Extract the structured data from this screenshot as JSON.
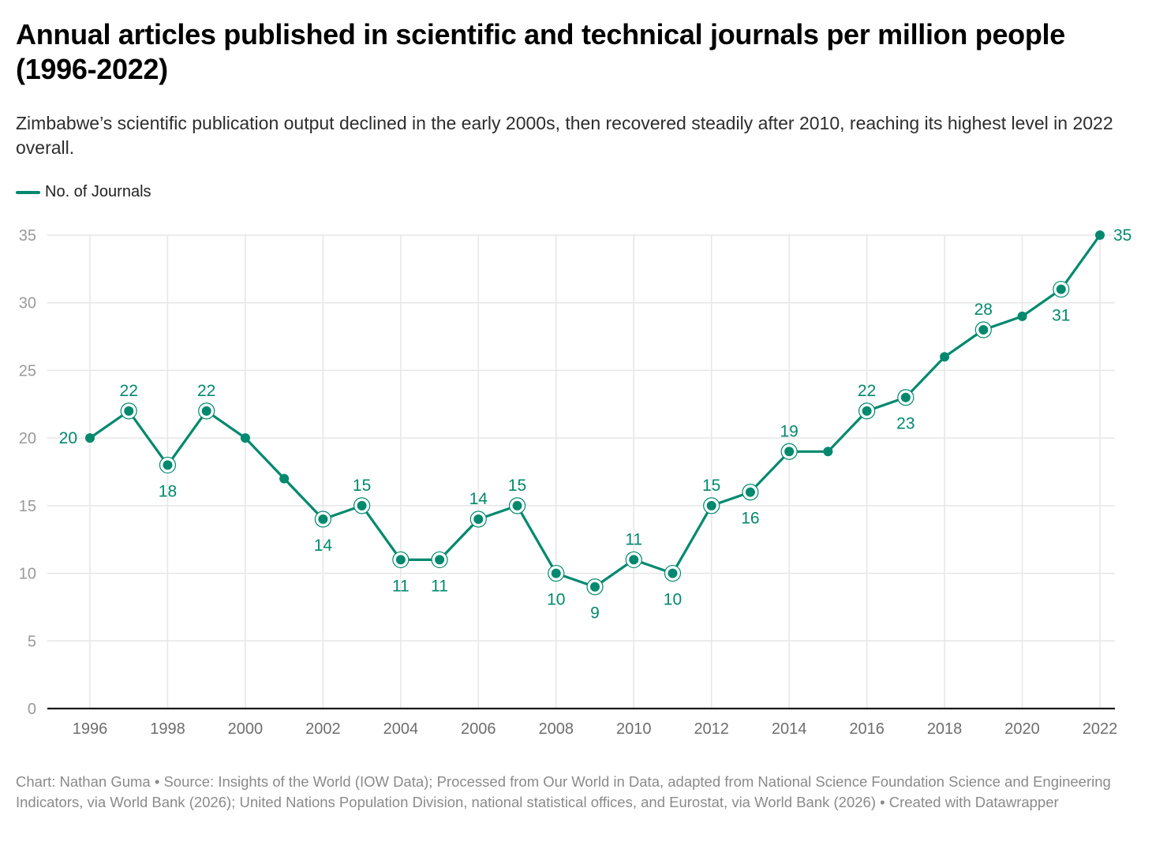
{
  "header": {
    "title": "Annual articles published in scientific and technical journals per million people (1996-2022)",
    "subtitle": "Zimbabwe’s scientific publication output declined in the early 2000s, then recovered steadily after 2010, reaching its highest level in 2022 overall."
  },
  "legend": {
    "items": [
      {
        "label": "No. of Journals",
        "color": "#00896e"
      }
    ]
  },
  "footer": {
    "text": "Chart: Nathan Guma • Source: Insights of the World (IOW Data); Processed from Our World in Data, adapted from National Science Foundation Science and Engineering Indicators, via World Bank (2026); United Nations Population Division, national statistical offices, and Eurostat, via World Bank (2026) • Created with Datawrapper"
  },
  "colors": {
    "series": "#00896e",
    "grid": "#e6e6e6",
    "baseline": "#1a1a1a",
    "tick_text": "#9a9a9a",
    "x_tick_text": "#6e6e6e"
  },
  "chart_data": {
    "type": "line",
    "title": "Annual articles published in scientific and technical journals per million people (1996-2022)",
    "xlabel": "",
    "ylabel": "",
    "x": [
      1996,
      1997,
      1998,
      1999,
      2000,
      2001,
      2002,
      2003,
      2004,
      2005,
      2006,
      2007,
      2008,
      2009,
      2010,
      2011,
      2012,
      2013,
      2014,
      2015,
      2016,
      2017,
      2018,
      2019,
      2020,
      2021,
      2022
    ],
    "series": [
      {
        "name": "No. of Journals",
        "values": [
          20,
          22,
          18,
          22,
          20,
          17,
          14,
          15,
          11,
          11,
          14,
          15,
          10,
          9,
          11,
          10,
          15,
          16,
          19,
          19,
          22,
          23,
          26,
          28,
          29,
          31,
          35
        ]
      }
    ],
    "highlighted": [
      1997,
      1998,
      1999,
      2002,
      2003,
      2004,
      2005,
      2006,
      2007,
      2008,
      2009,
      2010,
      2011,
      2012,
      2013,
      2014,
      2016,
      2017,
      2019,
      2021
    ],
    "data_labels": [
      {
        "year": 1996,
        "text": "20",
        "position": "left"
      },
      {
        "year": 1997,
        "text": "22",
        "position": "above"
      },
      {
        "year": 1998,
        "text": "18",
        "position": "below"
      },
      {
        "year": 1999,
        "text": "22",
        "position": "above"
      },
      {
        "year": 2002,
        "text": "14",
        "position": "below"
      },
      {
        "year": 2003,
        "text": "15",
        "position": "above"
      },
      {
        "year": 2004,
        "text": "11",
        "position": "below"
      },
      {
        "year": 2005,
        "text": "11",
        "position": "below"
      },
      {
        "year": 2006,
        "text": "14",
        "position": "above"
      },
      {
        "year": 2007,
        "text": "15",
        "position": "above"
      },
      {
        "year": 2008,
        "text": "10",
        "position": "below"
      },
      {
        "year": 2009,
        "text": "9",
        "position": "below"
      },
      {
        "year": 2010,
        "text": "11",
        "position": "above"
      },
      {
        "year": 2011,
        "text": "10",
        "position": "below"
      },
      {
        "year": 2012,
        "text": "15",
        "position": "above"
      },
      {
        "year": 2013,
        "text": "16",
        "position": "below"
      },
      {
        "year": 2014,
        "text": "19",
        "position": "above"
      },
      {
        "year": 2016,
        "text": "22",
        "position": "above"
      },
      {
        "year": 2017,
        "text": "23",
        "position": "below"
      },
      {
        "year": 2019,
        "text": "28",
        "position": "above"
      },
      {
        "year": 2021,
        "text": "31",
        "position": "below"
      },
      {
        "year": 2022,
        "text": "35",
        "position": "right"
      }
    ],
    "yticks": [
      0,
      5,
      10,
      15,
      20,
      25,
      30,
      35
    ],
    "xticks": [
      1996,
      1998,
      2000,
      2002,
      2004,
      2006,
      2008,
      2010,
      2012,
      2014,
      2016,
      2018,
      2020,
      2022
    ],
    "xgrid": [
      1996,
      1998,
      2000,
      2002,
      2004,
      2006,
      2008,
      2010,
      2012,
      2014,
      2016,
      2018,
      2020,
      2022
    ],
    "ylim": [
      0,
      35
    ],
    "xlim": [
      1996,
      2022
    ],
    "grid": true,
    "legend_position": "top-left"
  }
}
